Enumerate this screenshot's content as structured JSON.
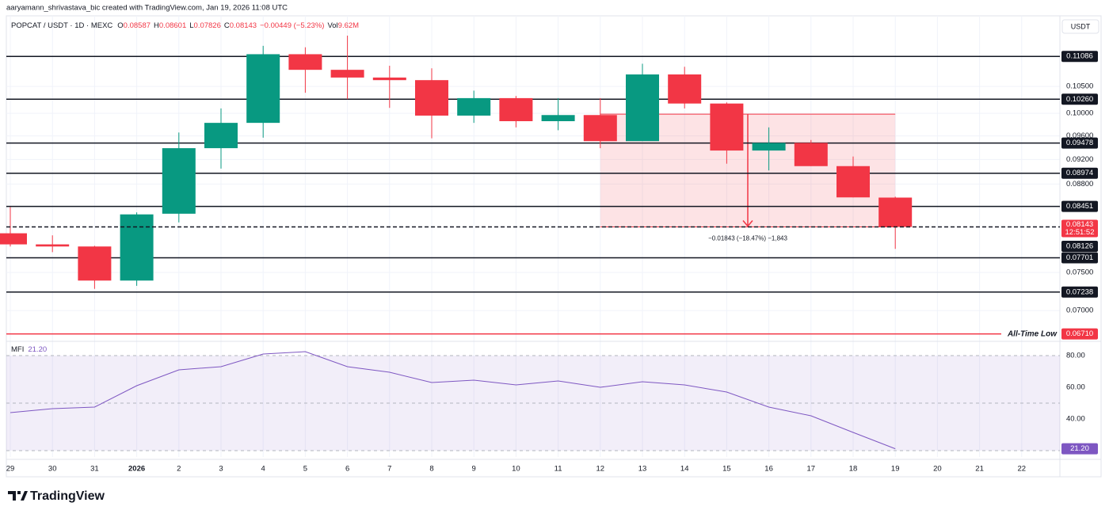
{
  "chart_data": {
    "type": "candlestick",
    "attribution": "aaryamann_shrivastava_bic created with TradingView.com, Jan 19, 2026 11:08 UTC",
    "symbol": "POPCAT / USDT · 1D · MEXC",
    "ohlc_labels": [
      "O",
      "H",
      "L",
      "C"
    ],
    "change": "−0.00449 (−5.23%)",
    "vol_label": "Vol",
    "vol": "9.62M",
    "currency": "USDT",
    "brand": "TradingView",
    "categories": [
      "29",
      "30",
      "31",
      "2026",
      "2",
      "3",
      "4",
      "5",
      "6",
      "7",
      "8",
      "9",
      "10",
      "11",
      "12",
      "13",
      "14",
      "15",
      "16",
      "17",
      "18",
      "19",
      "20",
      "21",
      "22"
    ],
    "open": [
      0.0805,
      0.0789,
      0.0786,
      0.0739,
      0.0834,
      0.0939,
      0.0983,
      0.1113,
      0.1082,
      0.1067,
      0.1062,
      0.0996,
      0.1028,
      0.0986,
      0.0997,
      0.0951,
      0.1073,
      0.1018,
      0.0935,
      0.0948,
      0.0909,
      0.08587,
      null,
      null,
      null
    ],
    "high": [
      0.0844,
      0.0802,
      0.0787,
      0.0836,
      0.0966,
      0.1009,
      0.113,
      0.1127,
      0.1151,
      0.109,
      0.1085,
      0.1042,
      0.1032,
      0.1028,
      0.1028,
      0.1094,
      0.1088,
      0.102,
      0.0975,
      0.0953,
      0.0925,
      0.08601,
      null,
      null,
      null
    ],
    "low": [
      0.0786,
      0.0778,
      0.0728,
      0.0732,
      0.0821,
      0.0905,
      0.0957,
      0.1038,
      0.1026,
      0.101,
      0.0956,
      0.0983,
      0.0975,
      0.097,
      0.0939,
      0.0951,
      0.1009,
      0.0913,
      0.0902,
      0.0909,
      0.0859,
      0.07826,
      null,
      null,
      null
    ],
    "close": [
      0.0789,
      0.0786,
      0.0739,
      0.0833,
      0.0939,
      0.0983,
      0.1113,
      0.1082,
      0.1067,
      0.1062,
      0.0996,
      0.1028,
      0.0986,
      0.0997,
      0.0951,
      0.1073,
      0.1018,
      0.0935,
      0.0948,
      0.0909,
      0.0859,
      0.08143,
      null,
      null,
      null
    ],
    "up_color": "#089981",
    "down_color": "#f23645",
    "log_scale": true,
    "ylim": [
      0.0663,
      0.1193
    ],
    "yticks": [
      {
        "value": 0.105,
        "label": "0.10500"
      },
      {
        "value": 0.1,
        "label": "0.10000"
      },
      {
        "value": 0.096,
        "label": "0.09600"
      },
      {
        "value": 0.092,
        "label": "0.09200"
      },
      {
        "value": 0.088,
        "label": "0.08800"
      },
      {
        "value": 0.075,
        "label": "0.07500"
      },
      {
        "value": 0.07,
        "label": "0.07000"
      }
    ],
    "grid": true,
    "levels": [
      {
        "value": 0.11086,
        "label": "0.11086"
      },
      {
        "value": 0.1026,
        "label": "0.10260"
      },
      {
        "value": 0.09478,
        "label": "0.09478"
      },
      {
        "value": 0.08974,
        "label": "0.08974"
      },
      {
        "value": 0.08451,
        "label": "0.08451"
      },
      {
        "value": 0.07701,
        "label": "0.07701"
      },
      {
        "value": 0.07238,
        "label": "0.07238"
      }
    ],
    "all_time_low": {
      "value": 0.0671,
      "label": "0.06710",
      "text": "All-Time Low"
    },
    "last_price": {
      "value": 0.08143,
      "label": "0.08143",
      "countdown": "12:51:52"
    },
    "other_price": {
      "value": 0.08126,
      "label": "0.08126"
    },
    "measure": {
      "from": 0.09986,
      "to": 0.08143,
      "text": "−0.01843 (−18.47%) −1,843"
    },
    "mfi": {
      "name": "MFI",
      "value_label": "21.20",
      "color": "#7e57c2",
      "values": [
        44,
        46.5,
        47.5,
        61,
        71,
        73,
        81,
        82.5,
        73,
        69.5,
        63,
        64.5,
        61.5,
        64,
        60,
        63.5,
        61.5,
        57,
        47.5,
        42,
        31.5,
        21.2,
        null,
        null,
        null
      ],
      "ylim": [
        16,
        88.5
      ],
      "yticks": [
        {
          "value": 80,
          "label": "80.00"
        },
        {
          "value": 60,
          "label": "60.00"
        },
        {
          "value": 40,
          "label": "40.00"
        }
      ],
      "band": [
        20,
        80
      ],
      "mid": 50
    }
  }
}
